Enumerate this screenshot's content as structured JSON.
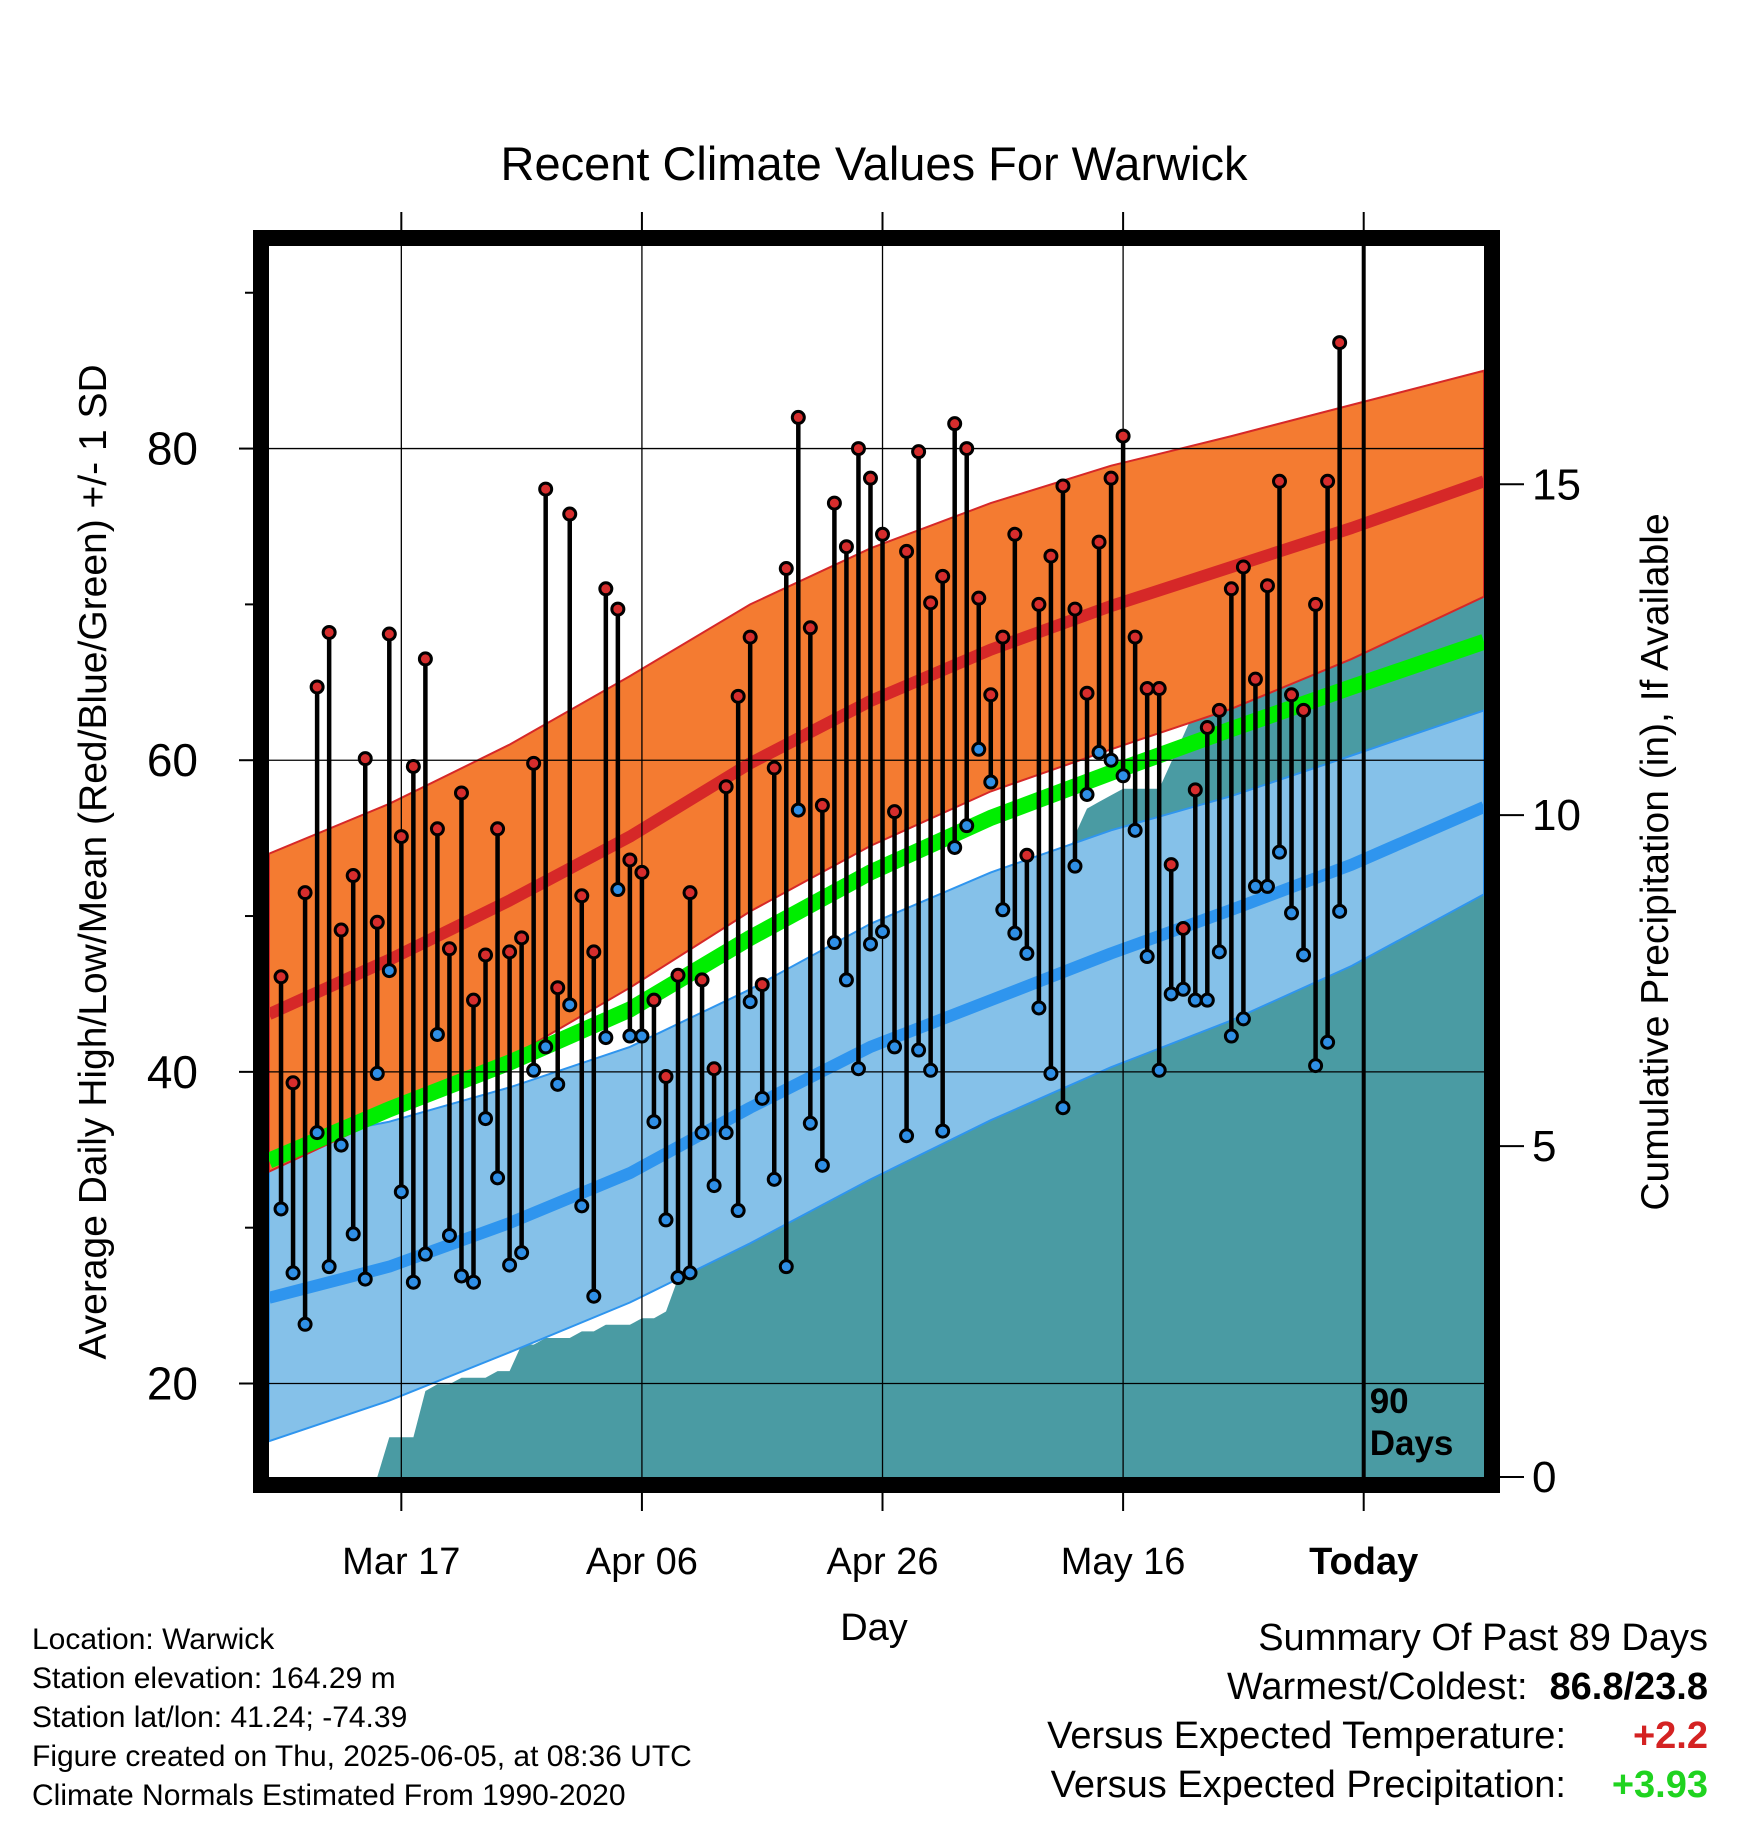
{
  "chart_data": {
    "type": "line",
    "title": "Recent Climate Values For Warwick",
    "xlabel": "Day",
    "ylabel": "Average Daily High/Low/Mean (Red/Blue/Green) +/- 1 SD",
    "y2label": "Cumulative Precipitation (in), If Available",
    "x_tick_labels": [
      "Mar 17",
      "Apr 06",
      "Apr 26",
      "May 16",
      "Today"
    ],
    "x_tick_days": [
      11,
      31,
      51,
      71,
      91
    ],
    "today_marker": {
      "day": 91,
      "label_line1": "90",
      "label_line2": "Days"
    },
    "x_range": [
      0,
      101
    ],
    "y_range": [
      14,
      93
    ],
    "y_ticks": [
      20,
      40,
      60,
      80
    ],
    "y2_range": [
      0,
      18.6
    ],
    "y2_ticks": [
      0,
      5,
      10,
      15
    ],
    "grid": true,
    "normals": {
      "days": [
        0,
        10,
        20,
        30,
        40,
        50,
        60,
        70,
        80,
        90,
        101
      ],
      "high_mean": [
        43.7,
        47.2,
        51.0,
        55.1,
        59.8,
        63.8,
        67.1,
        69.9,
        72.4,
        74.9,
        77.9
      ],
      "high_upper": [
        54.0,
        57.2,
        61.0,
        65.4,
        70.0,
        73.6,
        76.5,
        78.9,
        80.8,
        82.8,
        85.0
      ],
      "high_lower": [
        33.6,
        37.2,
        40.9,
        45.4,
        50.3,
        54.5,
        58.0,
        60.7,
        63.3,
        66.5,
        70.5
      ],
      "mean_mean": [
        34.3,
        37.6,
        40.6,
        44.0,
        48.6,
        52.8,
        56.3,
        59.2,
        62.0,
        64.7,
        67.6
      ],
      "low_mean": [
        25.5,
        27.5,
        30.3,
        33.5,
        37.7,
        41.6,
        44.6,
        47.6,
        50.4,
        53.3,
        57.0
      ],
      "low_upper": [
        35.3,
        36.8,
        39.0,
        41.6,
        45.3,
        49.5,
        52.8,
        55.5,
        57.7,
        60.3,
        63.2
      ],
      "low_lower": [
        16.3,
        18.9,
        22.0,
        25.2,
        29.0,
        33.1,
        36.9,
        40.3,
        43.3,
        46.8,
        51.4
      ]
    },
    "series": [
      {
        "name": "High",
        "values": [
          46.1,
          39.3,
          51.5,
          64.7,
          68.2,
          49.1,
          52.6,
          60.1,
          49.6,
          68.1,
          55.1,
          59.6,
          66.5,
          55.6,
          47.9,
          57.9,
          44.6,
          47.5,
          55.6,
          47.7,
          48.6,
          59.8,
          77.4,
          45.4,
          75.8,
          51.3,
          47.7,
          71.0,
          69.7,
          53.6,
          52.8,
          44.6,
          39.7,
          46.2,
          51.5,
          45.9,
          40.2,
          58.3,
          64.1,
          67.9,
          45.6,
          59.5,
          72.3,
          82.0,
          68.5,
          57.1,
          76.5,
          73.7,
          80.0,
          78.1,
          74.5,
          56.7,
          73.4,
          79.8,
          70.1,
          71.8,
          81.6,
          80.0,
          70.4,
          64.2,
          67.9,
          74.5,
          53.9,
          70.0,
          73.1,
          77.6,
          69.7,
          64.3,
          74.0,
          78.1,
          80.8,
          67.9,
          64.6,
          64.6,
          53.3,
          49.2,
          58.1,
          62.1,
          63.2,
          71.0,
          72.4,
          65.2,
          71.2,
          77.9,
          64.2,
          63.2,
          70.0,
          77.9,
          86.8
        ]
      },
      {
        "name": "Low",
        "values": [
          31.2,
          27.1,
          23.8,
          36.1,
          27.5,
          35.3,
          29.6,
          26.7,
          39.9,
          46.5,
          32.3,
          26.5,
          28.3,
          42.4,
          29.5,
          26.9,
          26.5,
          37.0,
          33.2,
          27.6,
          28.4,
          40.1,
          41.6,
          39.2,
          44.3,
          31.4,
          25.6,
          42.2,
          51.7,
          42.3,
          42.3,
          36.8,
          30.5,
          26.8,
          27.1,
          36.1,
          32.7,
          36.1,
          31.1,
          44.5,
          38.3,
          33.1,
          27.5,
          56.8,
          36.7,
          34.0,
          48.3,
          45.9,
          40.2,
          48.2,
          49.0,
          41.6,
          35.9,
          41.4,
          40.1,
          36.2,
          54.4,
          55.8,
          60.7,
          58.6,
          50.4,
          48.9,
          47.6,
          44.1,
          39.9,
          37.7,
          53.2,
          57.8,
          60.5,
          60.0,
          59.0,
          55.5,
          47.4,
          40.1,
          45.0,
          45.3,
          44.6,
          44.6,
          47.7,
          42.3,
          43.4,
          51.9,
          51.9,
          54.1,
          50.2,
          47.5,
          40.4,
          41.9,
          50.3
        ]
      }
    ],
    "precipitation": {
      "days": [
        0,
        9,
        10,
        11,
        12,
        13,
        14,
        15,
        16,
        17,
        18,
        19,
        20,
        21,
        22,
        23,
        24,
        25,
        26,
        27,
        28,
        29,
        30,
        31,
        32,
        33,
        34,
        35,
        36,
        37,
        38,
        39,
        40,
        41,
        42,
        43,
        44,
        45,
        46,
        47,
        48,
        49,
        50,
        51,
        52,
        53,
        54,
        55,
        56,
        57,
        58,
        59,
        60,
        61,
        62,
        63,
        64,
        65,
        66,
        67,
        68,
        69,
        70,
        71,
        72,
        73,
        74,
        75,
        76,
        77,
        78,
        79,
        80,
        81,
        82,
        83,
        84,
        85,
        86,
        87,
        88,
        89,
        90,
        101
      ],
      "values": [
        0,
        0,
        0.6,
        0.6,
        0.6,
        1.3,
        1.4,
        1.4,
        1.5,
        1.5,
        1.5,
        1.6,
        1.6,
        2.0,
        2.0,
        2.1,
        2.1,
        2.1,
        2.2,
        2.2,
        2.3,
        2.3,
        2.3,
        2.4,
        2.4,
        2.5,
        3.0,
        4.3,
        4.3,
        4.3,
        4.3,
        4.3,
        4.3,
        4.35,
        4.35,
        4.35,
        4.35,
        4.35,
        4.35,
        4.4,
        4.4,
        5.0,
        5.0,
        5.0,
        5.0,
        5.0,
        5.0,
        5.0,
        5.4,
        5.8,
        6.2,
        6.6,
        7.0,
        7.1,
        7.1,
        9.2,
        9.2,
        9.2,
        9.2,
        9.7,
        10.1,
        10.2,
        10.3,
        10.4,
        10.4,
        10.4,
        10.4,
        10.8,
        11.2,
        11.6,
        11.7,
        11.7,
        11.7,
        11.7,
        11.8,
        11.9,
        12.0,
        12.0,
        15.3,
        15.3,
        15.3,
        15.3,
        15.3,
        15.3
      ]
    },
    "colors": {
      "high_band": "#f47b31",
      "high_line": "#d62828",
      "low_band": "#85c1e9",
      "low_line": "#2f95ee",
      "mean_line": "#00ee00",
      "precip_fill": "#4a9ba3",
      "high_point": "#d62d2d",
      "low_point": "#2f8fe6"
    }
  },
  "footer": {
    "location": "Location: Warwick",
    "elevation": "Station elevation: 164.29 m",
    "latlon": "Station lat/lon: 41.24; -74.39",
    "created": "Figure created on Thu, 2025-06-05, at 08:36 UTC",
    "normals": "Climate Normals Estimated From 1990-2020"
  },
  "summary": {
    "title": "Summary Of Past 89 Days",
    "warm_cold_label": "Warmest/Coldest:",
    "warm_cold_value": "86.8/23.8",
    "temp_label": "Versus Expected Temperature:",
    "temp_value": "+2.2",
    "temp_color": "#d42222",
    "precip_label": "Versus Expected Precipitation:",
    "precip_value": "+3.93",
    "precip_color": "#1fd31f"
  }
}
